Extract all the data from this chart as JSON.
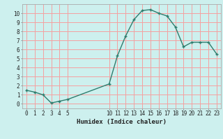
{
  "x": [
    0,
    1,
    2,
    3,
    4,
    5,
    10,
    11,
    12,
    13,
    14,
    15,
    16,
    17,
    18,
    19,
    20,
    21,
    22,
    23
  ],
  "y": [
    1.5,
    1.3,
    1.0,
    0.1,
    0.3,
    0.5,
    2.2,
    5.3,
    7.5,
    9.3,
    10.3,
    10.4,
    10.0,
    9.7,
    8.5,
    6.3,
    6.8,
    6.8,
    6.8,
    5.5
  ],
  "line_color": "#2e7d6e",
  "marker": "+",
  "marker_size": 3.5,
  "marker_lw": 1.0,
  "line_width": 1.0,
  "bg_color": "#cdf0ee",
  "grid_color": "#f5a0a0",
  "xlabel": "Humidex (Indice chaleur)",
  "xlim": [
    -0.5,
    23.5
  ],
  "ylim": [
    -0.5,
    11
  ],
  "xticks": [
    0,
    1,
    2,
    3,
    4,
    5,
    10,
    11,
    12,
    13,
    14,
    15,
    16,
    17,
    18,
    19,
    20,
    21,
    22,
    23
  ],
  "yticks": [
    0,
    1,
    2,
    3,
    4,
    5,
    6,
    7,
    8,
    9,
    10
  ],
  "tick_fontsize": 5.5,
  "xlabel_fontsize": 6.5
}
